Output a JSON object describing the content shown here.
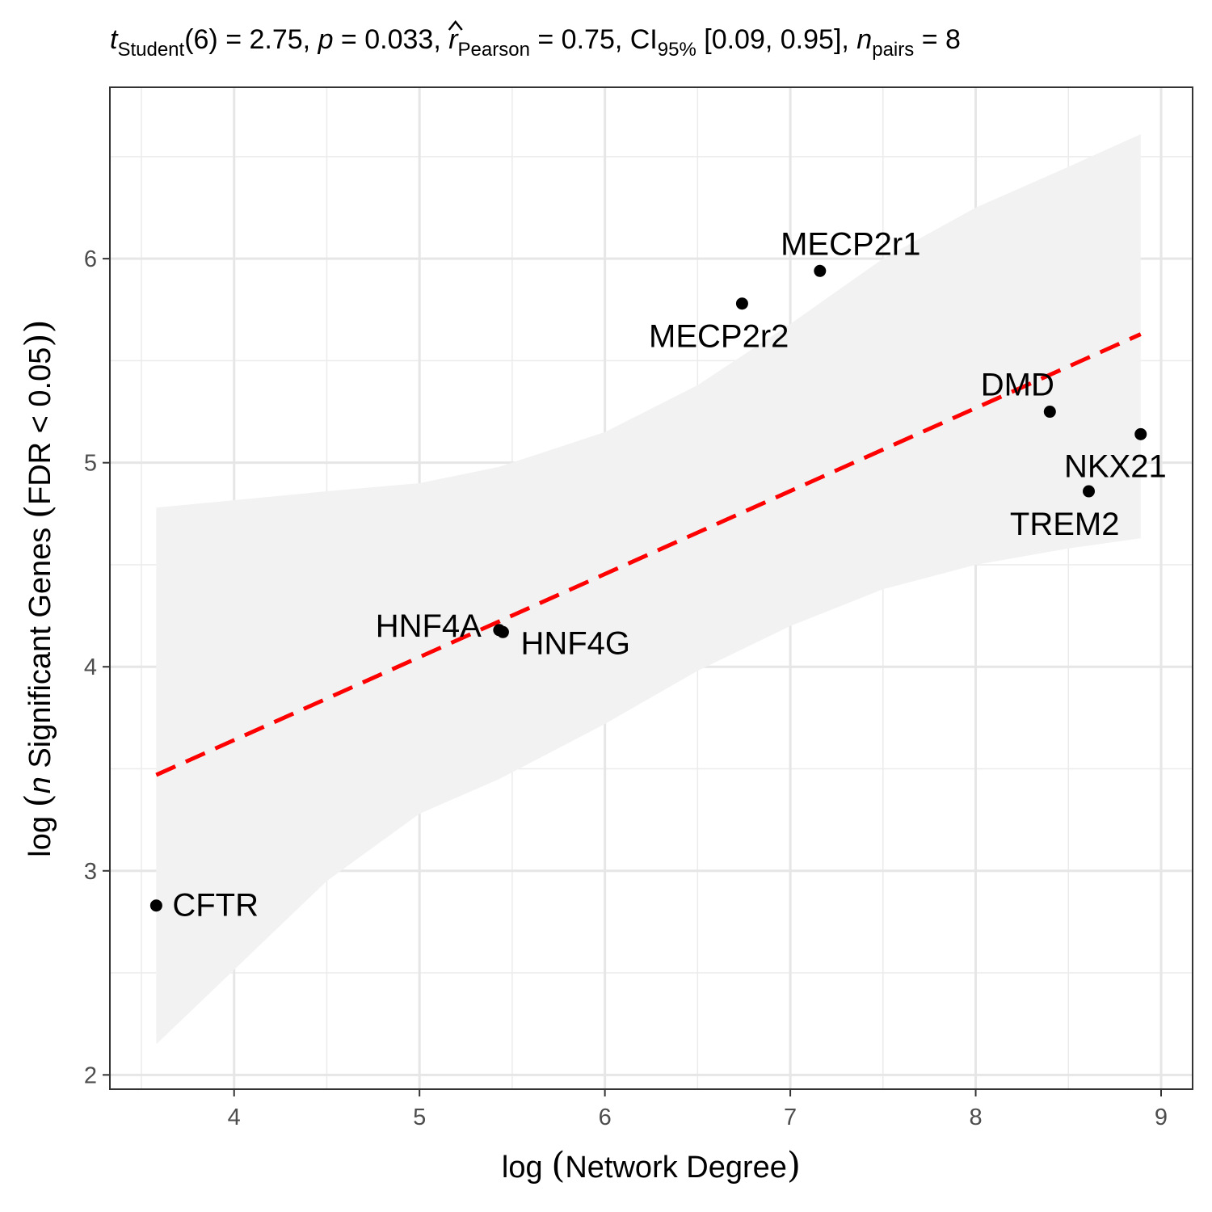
{
  "chart_data": {
    "type": "scatter",
    "title": {
      "t_symbol": "t",
      "t_sub": "Student",
      "t_value": "(6) = 2.75, ",
      "p_symbol": "p",
      "p_value": " = 0.033, ",
      "r_symbol": "r",
      "r_sub": "Pearson",
      "r_value": " = 0.75, CI",
      "ci_sub": "95%",
      "ci_value": " [0.09, 0.95], ",
      "n_symbol": "n",
      "n_sub": "pairs",
      "n_value": " = 8"
    },
    "xlabel": {
      "open": "log ",
      "paren_open": "(",
      "text": "Network Degree",
      "paren_close": ")"
    },
    "ylabel": {
      "open": "log ",
      "paren_open": "(",
      "n_symbol": "n",
      "text": " Significant Genes ",
      "inner_open": "(",
      "inner_text": "FDR < 0.05",
      "inner_close": ")",
      "paren_close": ")"
    },
    "xlim": [
      3.33,
      9.17
    ],
    "ylim": [
      1.93,
      6.84
    ],
    "x_ticks": [
      "4",
      "5",
      "6",
      "7",
      "8",
      "9"
    ],
    "y_ticks": [
      "2",
      "3",
      "4",
      "5",
      "6"
    ],
    "x_tick_values": [
      4,
      5,
      6,
      7,
      8,
      9
    ],
    "y_tick_values": [
      2,
      3,
      4,
      5,
      6
    ],
    "grid": true,
    "points": [
      {
        "label": "CFTR",
        "x": 3.58,
        "y": 2.83,
        "label_side": "right"
      },
      {
        "label": "HNF4A",
        "x": 5.43,
        "y": 4.18,
        "label_side": "left"
      },
      {
        "label": "HNF4G",
        "x": 5.45,
        "y": 4.17,
        "label_side": "below-right"
      },
      {
        "label": "MECP2r2",
        "x": 6.74,
        "y": 5.78,
        "label_side": "below-left"
      },
      {
        "label": "MECP2r1",
        "x": 7.16,
        "y": 5.94,
        "label_side": "above-right"
      },
      {
        "label": "DMD",
        "x": 8.4,
        "y": 5.25,
        "label_side": "above-left"
      },
      {
        "label": "NKX21",
        "x": 8.89,
        "y": 5.14,
        "label_side": "below-left"
      },
      {
        "label": "TREM2",
        "x": 8.61,
        "y": 4.86,
        "label_side": "below-left"
      }
    ],
    "fit_line": {
      "x": [
        3.58,
        8.89
      ],
      "y": [
        3.47,
        5.63
      ],
      "style": "dashed",
      "color": "#ff0000"
    },
    "confidence_band": {
      "x": [
        3.58,
        4.5,
        5.0,
        5.43,
        6.0,
        6.5,
        7.0,
        7.5,
        8.0,
        8.5,
        8.89
      ],
      "upper": [
        4.78,
        4.86,
        4.9,
        4.98,
        5.15,
        5.38,
        5.68,
        6.0,
        6.25,
        6.45,
        6.61
      ],
      "lower": [
        2.15,
        2.95,
        3.28,
        3.45,
        3.72,
        3.98,
        4.2,
        4.38,
        4.5,
        4.58,
        4.63
      ],
      "color": "#f2f2f2"
    }
  }
}
